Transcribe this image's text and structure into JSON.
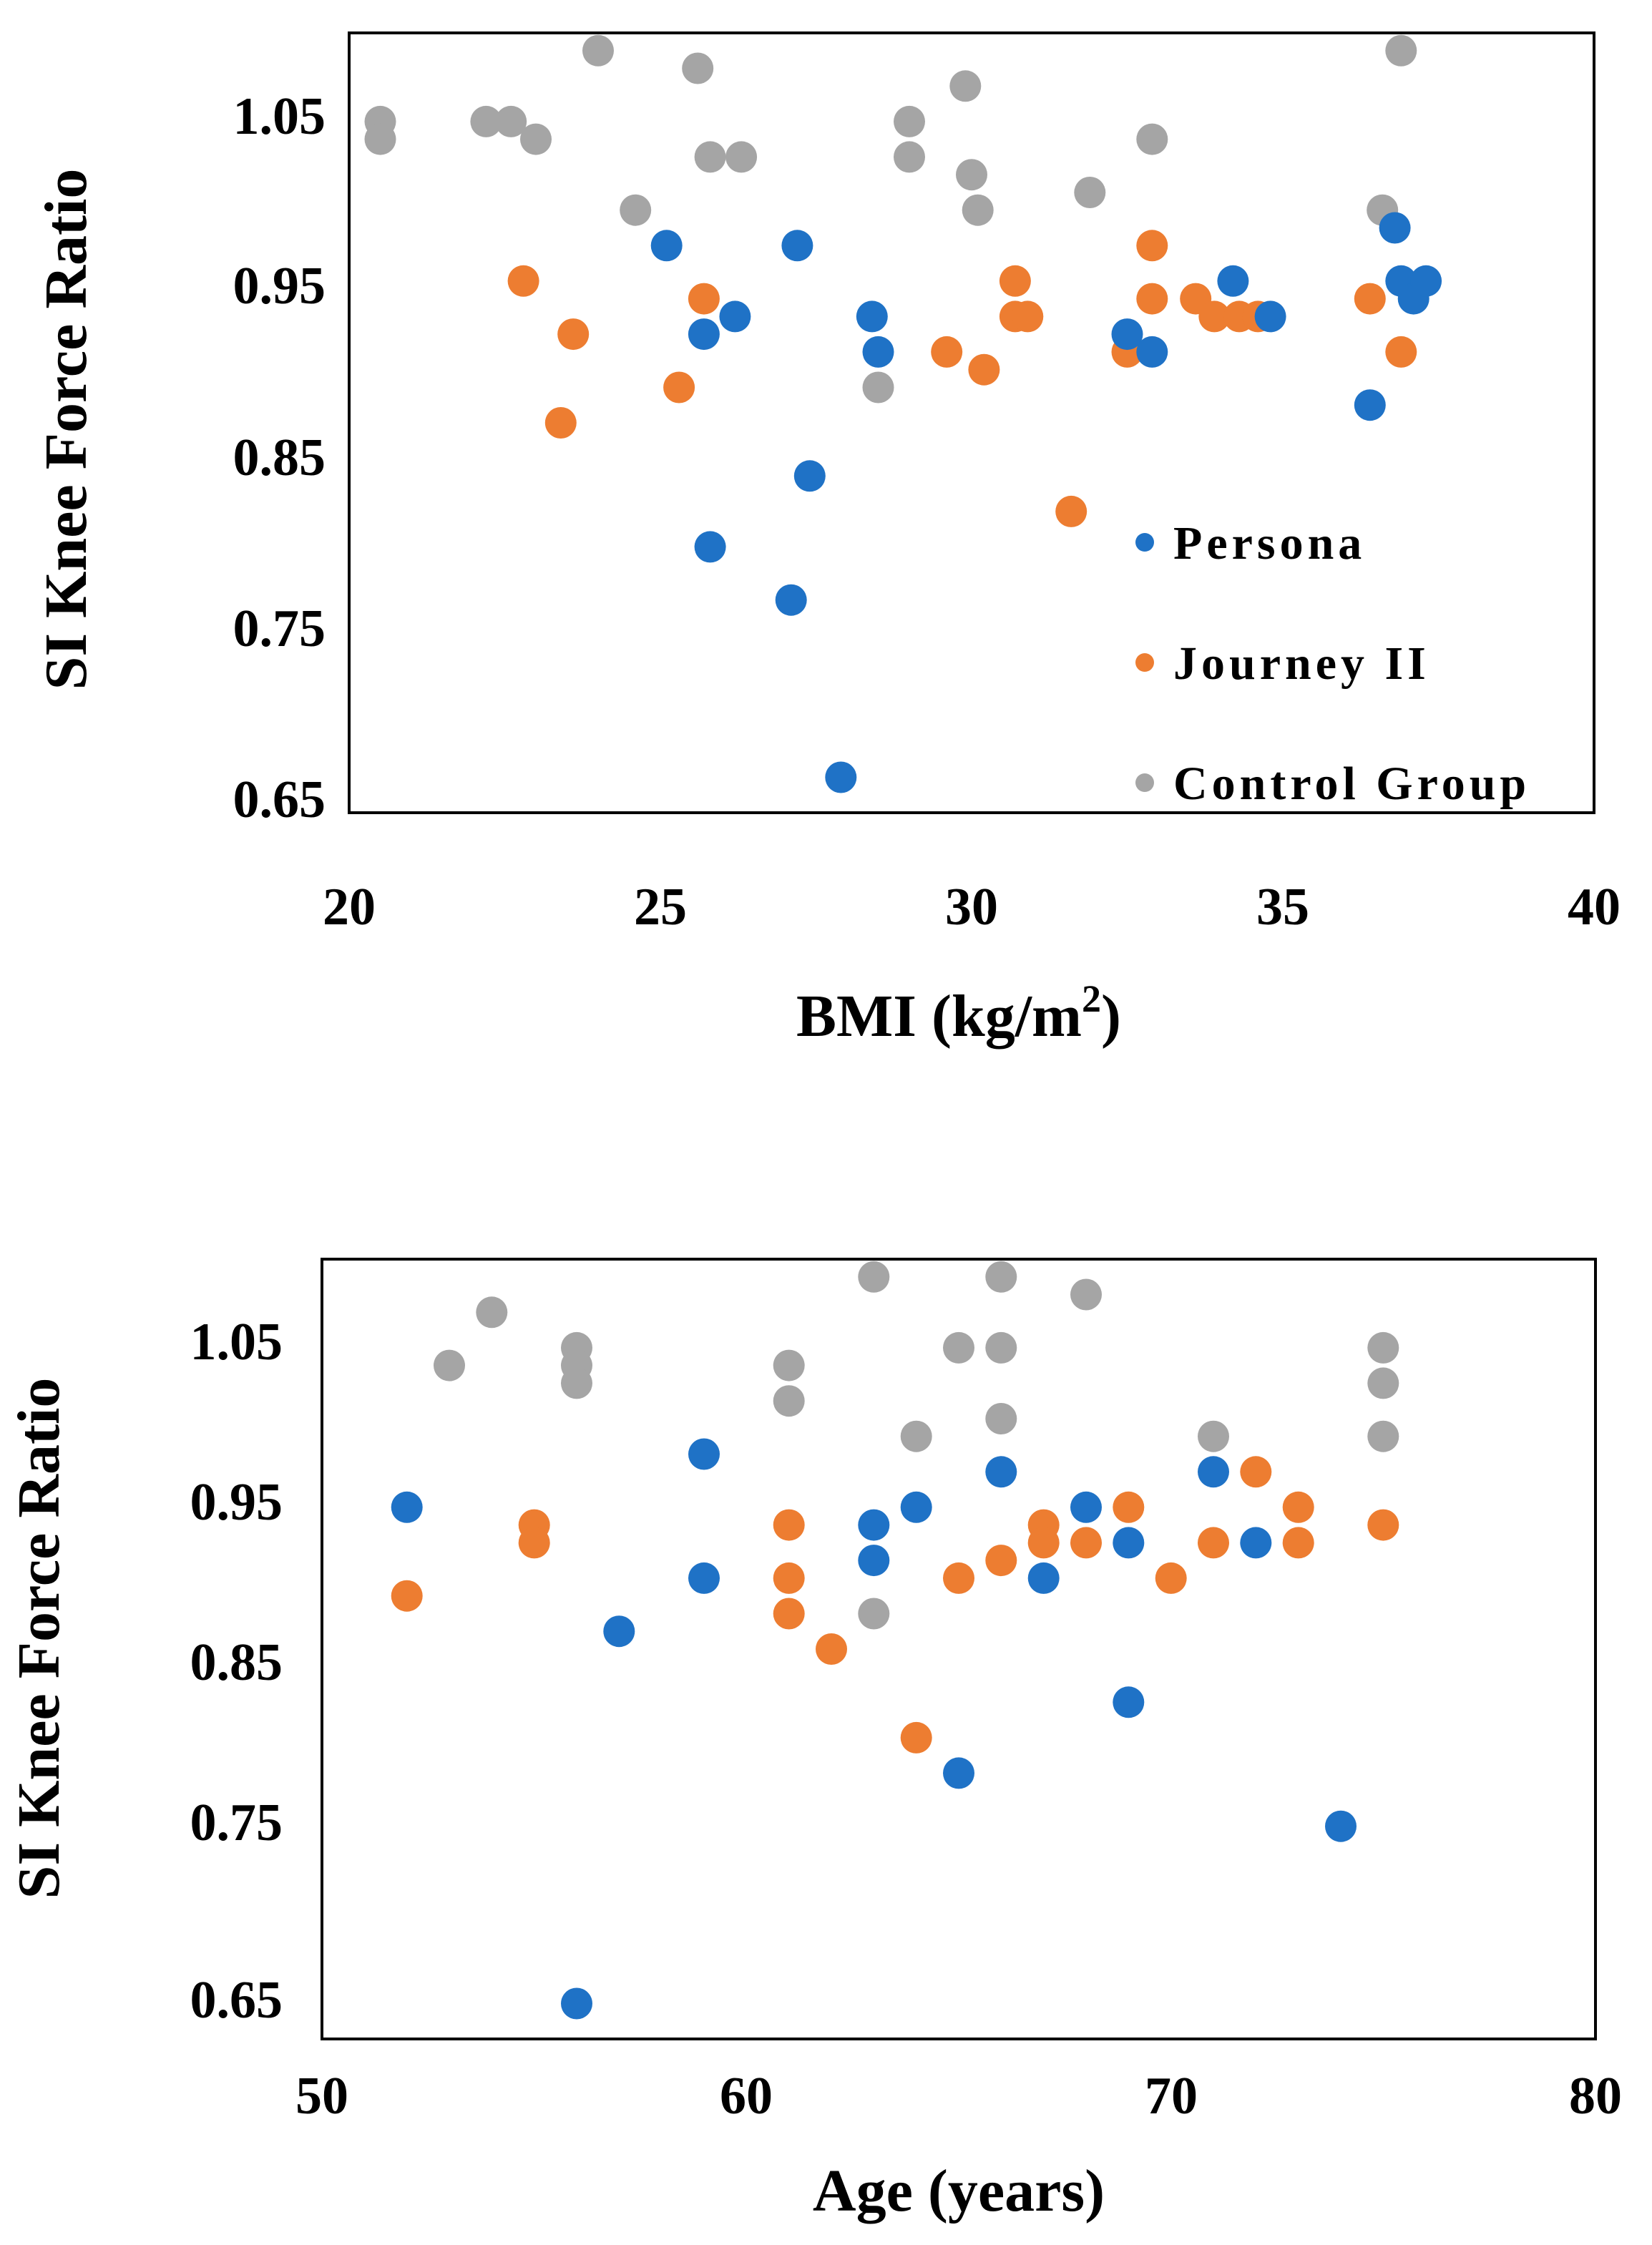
{
  "chart_data": [
    {
      "type": "scatter",
      "title": "",
      "xlabel": "BMI (kg/m",
      "xlabel_superscript": "2",
      "xlabel_close": ")",
      "ylabel": "SI Knee Force Ratio",
      "xlim": [
        20,
        40
      ],
      "ylim": [
        0.65,
        1.09
      ],
      "xticks": [
        "20",
        "25",
        "30",
        "35",
        "40"
      ],
      "yticks": [
        "1.05",
        "0.95",
        "0.85",
        "0.75",
        "0.65"
      ],
      "grid": false,
      "legend": {
        "placement": "bottom-right",
        "entries": [
          "Persona",
          "Journey II",
          "Control Group"
        ]
      },
      "series": [
        {
          "name": "Control Group",
          "color": "#a5a5a5",
          "points": [
            [
              20.5,
              1.04
            ],
            [
              20.5,
              1.03
            ],
            [
              22.2,
              1.04
            ],
            [
              22.6,
              1.04
            ],
            [
              23,
              1.03
            ],
            [
              24,
              1.08
            ],
            [
              24.6,
              0.99
            ],
            [
              25.6,
              1.07
            ],
            [
              25.8,
              1.02
            ],
            [
              26.3,
              1.02
            ],
            [
              28.5,
              0.89
            ],
            [
              29,
              1.04
            ],
            [
              29,
              1.02
            ],
            [
              29.9,
              1.06
            ],
            [
              30,
              1.01
            ],
            [
              30.1,
              0.99
            ],
            [
              31.9,
              1.0
            ],
            [
              32.9,
              1.03
            ],
            [
              36.6,
              0.99
            ],
            [
              36.9,
              1.08
            ]
          ]
        },
        {
          "name": "Journey II",
          "color": "#ed7d31",
          "points": [
            [
              22.8,
              0.95
            ],
            [
              23.4,
              0.87
            ],
            [
              23.6,
              0.92
            ],
            [
              25.3,
              0.89
            ],
            [
              25.7,
              0.94
            ],
            [
              29.6,
              0.91
            ],
            [
              30.2,
              0.9
            ],
            [
              30.7,
              0.95
            ],
            [
              30.7,
              0.93
            ],
            [
              30.9,
              0.93
            ],
            [
              31.6,
              0.82
            ],
            [
              32.5,
              0.91
            ],
            [
              32.9,
              0.97
            ],
            [
              32.9,
              0.94
            ],
            [
              33.6,
              0.94
            ],
            [
              33.9,
              0.93
            ],
            [
              34.3,
              0.93
            ],
            [
              34.6,
              0.93
            ],
            [
              36.4,
              0.94
            ],
            [
              36.9,
              0.91
            ]
          ]
        },
        {
          "name": "Persona",
          "color": "#1f72c6",
          "points": [
            [
              25.1,
              0.97
            ],
            [
              25.7,
              0.92
            ],
            [
              25.8,
              0.8
            ],
            [
              26.2,
              0.93
            ],
            [
              27.1,
              0.77
            ],
            [
              27.2,
              0.97
            ],
            [
              27.4,
              0.84
            ],
            [
              27.9,
              0.67
            ],
            [
              28.4,
              0.93
            ],
            [
              28.5,
              0.91
            ],
            [
              32.5,
              0.92
            ],
            [
              32.9,
              0.91
            ],
            [
              34.2,
              0.95
            ],
            [
              34.8,
              0.93
            ],
            [
              36.4,
              0.88
            ],
            [
              36.8,
              0.98
            ],
            [
              36.9,
              0.95
            ],
            [
              37.1,
              0.94
            ],
            [
              37.3,
              0.95
            ]
          ]
        }
      ]
    },
    {
      "type": "scatter",
      "title": "",
      "xlabel": "Age (years)",
      "ylabel": "SI Knee Force Ratio",
      "xlim": [
        50,
        80
      ],
      "ylim": [
        0.65,
        1.09
      ],
      "xticks": [
        "50",
        "60",
        "70",
        "80"
      ],
      "yticks": [
        "1.05",
        "0.95",
        "0.85",
        "0.75",
        "0.65"
      ],
      "grid": false,
      "legend": null,
      "series": [
        {
          "name": "Control Group",
          "color": "#a5a5a5",
          "points": [
            [
              53,
              1.03
            ],
            [
              54,
              1.06
            ],
            [
              56,
              1.04
            ],
            [
              56,
              1.03
            ],
            [
              56,
              1.02
            ],
            [
              61,
              1.03
            ],
            [
              61,
              1.01
            ],
            [
              63,
              1.08
            ],
            [
              63,
              0.89
            ],
            [
              64,
              0.99
            ],
            [
              65,
              1.04
            ],
            [
              66,
              1.08
            ],
            [
              66,
              1.04
            ],
            [
              66,
              1.0
            ],
            [
              68,
              1.07
            ],
            [
              71,
              0.99
            ],
            [
              75,
              1.04
            ],
            [
              75,
              1.02
            ],
            [
              75,
              0.99
            ]
          ]
        },
        {
          "name": "Journey II",
          "color": "#ed7d31",
          "points": [
            [
              52,
              0.9
            ],
            [
              55,
              0.94
            ],
            [
              55,
              0.93
            ],
            [
              61,
              0.94
            ],
            [
              61,
              0.91
            ],
            [
              61,
              0.89
            ],
            [
              62,
              0.87
            ],
            [
              64,
              0.82
            ],
            [
              65,
              0.91
            ],
            [
              66,
              0.92
            ],
            [
              67,
              0.94
            ],
            [
              67,
              0.93
            ],
            [
              68,
              0.93
            ],
            [
              69,
              0.95
            ],
            [
              70,
              0.91
            ],
            [
              71,
              0.93
            ],
            [
              72,
              0.97
            ],
            [
              73,
              0.95
            ],
            [
              73,
              0.93
            ],
            [
              75,
              0.94
            ]
          ]
        },
        {
          "name": "Persona",
          "color": "#1f72c6",
          "points": [
            [
              52,
              0.95
            ],
            [
              56,
              0.67
            ],
            [
              57,
              0.88
            ],
            [
              59,
              0.98
            ],
            [
              59,
              0.91
            ],
            [
              63,
              0.94
            ],
            [
              63,
              0.92
            ],
            [
              64,
              0.95
            ],
            [
              65,
              0.8
            ],
            [
              66,
              0.97
            ],
            [
              67,
              0.91
            ],
            [
              68,
              0.95
            ],
            [
              69,
              0.93
            ],
            [
              69,
              0.84
            ],
            [
              71,
              0.97
            ],
            [
              72,
              0.93
            ],
            [
              74,
              0.77
            ]
          ]
        }
      ]
    }
  ]
}
